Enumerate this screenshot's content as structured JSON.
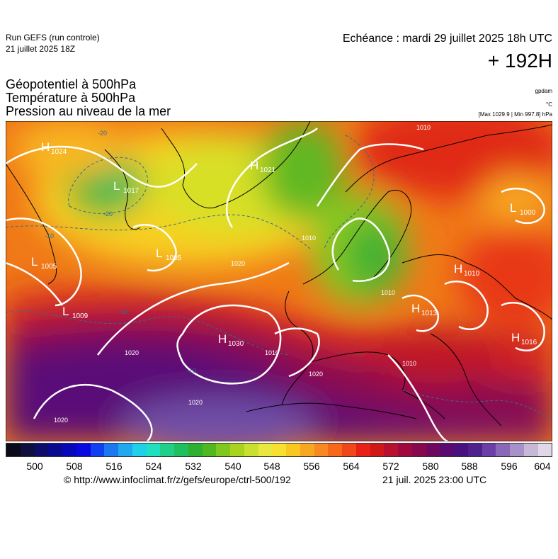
{
  "header": {
    "run_title": "Run GEFS (run controle)",
    "run_date": "21 juillet 2025 18Z",
    "echeance": "Echéance : mardi 29 juillet 2025 18h UTC",
    "horizon": "+ 192H"
  },
  "parameters": {
    "geopotential": "Géopotentiel à 500hPa",
    "temperature": "Température à 500hPa",
    "pressure": "Pression au niveau de la mer",
    "unit_geopotential": "gpdam",
    "unit_temperature": "°C",
    "unit_pressure": "[Max 1029.9 | Min 997.8] hPa"
  },
  "pressure_centers": [
    {
      "type": "H",
      "value": "1024"
    },
    {
      "type": "L",
      "value": "1017"
    },
    {
      "type": "H",
      "value": "1021"
    },
    {
      "type": "L",
      "value": "1005"
    },
    {
      "type": "L",
      "value": "1005"
    },
    {
      "type": "L",
      "value": "1009"
    },
    {
      "type": "H",
      "value": "1030"
    },
    {
      "type": "L",
      "value": "1000"
    },
    {
      "type": "H",
      "value": "1010"
    },
    {
      "type": "H",
      "value": "1013"
    },
    {
      "type": "H",
      "value": "1016"
    }
  ],
  "isobar_labels": [
    "1020",
    "1020",
    "1020",
    "1020",
    "1020",
    "1010",
    "1010",
    "1010",
    "1010",
    "1010"
  ],
  "temperature_labels": [
    "-20",
    "-20",
    "-10",
    "-10",
    "-10"
  ],
  "colorbar": {
    "colors": [
      "#0a0a1a",
      "#101040",
      "#0d0d6a",
      "#0a0a90",
      "#0808b8",
      "#0808e0",
      "#1040f0",
      "#1a78f0",
      "#20a8f0",
      "#20d0e8",
      "#20e0c0",
      "#20d088",
      "#20c060",
      "#30b030",
      "#50b820",
      "#80c820",
      "#a8d420",
      "#c8e030",
      "#e8e840",
      "#f8e030",
      "#f8c820",
      "#f8a820",
      "#f88820",
      "#f86818",
      "#f04818",
      "#e82018",
      "#d01818",
      "#b81030",
      "#a00840",
      "#880850",
      "#700860",
      "#5a0a70",
      "#4a1080",
      "#502090",
      "#6a40a8",
      "#8a68b8",
      "#a890c8",
      "#c8b8d8",
      "#e0d8e8"
    ],
    "tick_labels": [
      "500",
      "508",
      "516",
      "524",
      "532",
      "540",
      "548",
      "556",
      "564",
      "572",
      "580",
      "588",
      "596",
      "604"
    ]
  },
  "footer": {
    "copyright": "© http://www.infoclimat.fr/z/gefs/europe/ctrl-500/192",
    "generated": "21 juil. 2025 23:00 UTC"
  }
}
